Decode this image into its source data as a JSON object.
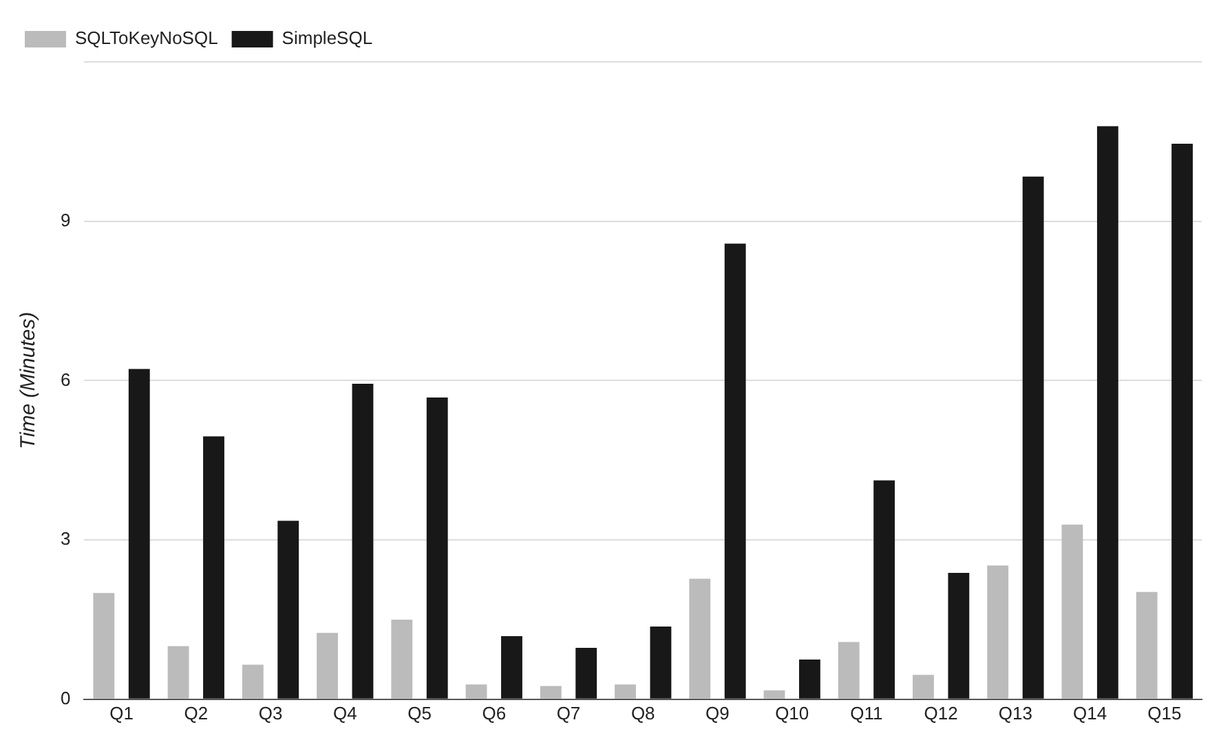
{
  "chart_data": {
    "type": "bar",
    "ylabel": "Time (Minutes)",
    "categories": [
      "Q1",
      "Q2",
      "Q3",
      "Q4",
      "Q5",
      "Q6",
      "Q7",
      "Q8",
      "Q9",
      "Q10",
      "Q11",
      "Q12",
      "Q13",
      "Q14",
      "Q15"
    ],
    "series": [
      {
        "name": "SQLToKeyNoSQL",
        "color": "#bbbbbb",
        "values": [
          2.0,
          1.0,
          0.65,
          1.25,
          1.5,
          0.28,
          0.25,
          0.28,
          2.27,
          0.17,
          1.08,
          0.46,
          2.52,
          3.29,
          2.02
        ]
      },
      {
        "name": "SimpleSQL",
        "color": "#181818",
        "values": [
          6.22,
          4.95,
          3.36,
          5.94,
          5.68,
          1.19,
          0.97,
          1.37,
          8.58,
          0.75,
          4.12,
          2.38,
          9.84,
          10.79,
          10.46
        ]
      }
    ],
    "ylim": [
      0,
      12
    ],
    "yticks": [
      0,
      3,
      6,
      9,
      {
        "value": 12,
        "label": null
      }
    ],
    "grid": "y",
    "legend": "top left"
  }
}
